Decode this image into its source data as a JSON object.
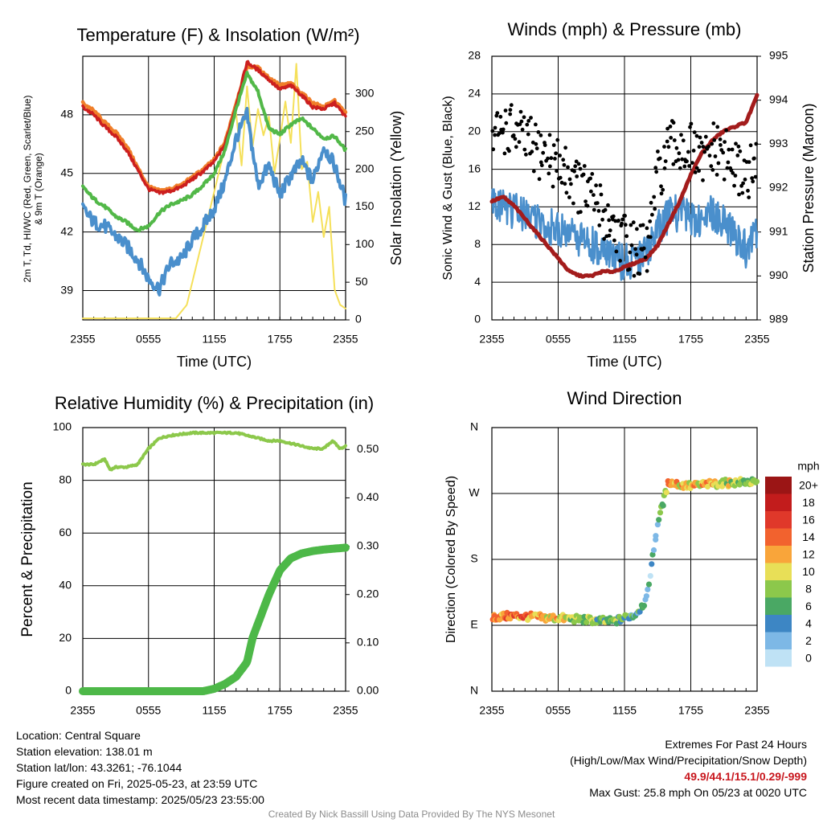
{
  "info": {
    "location": "Location: Central Square",
    "elevation": "Station elevation: 138.01 m",
    "latlon": "Station lat/lon: 43.3261; -76.1044",
    "created": "Figure created on Fri, 2025-05-23, at 23:59 UTC",
    "recent": "Most recent data timestamp: 2025/05/23 23:55:00"
  },
  "extremes": {
    "heading": "Extremes For Past 24 Hours",
    "subheading": "(High/Low/Max Wind/Precipitation/Snow Depth)",
    "values": "49.9/44.1/15.1/0.29/-999",
    "gust": "Max Gust: 25.8 mph On 05/23 at 0020 UTC"
  },
  "footer": "Created By Nick Bassill Using Data Provided By The NYS Mesonet",
  "chart_data": [
    {
      "type": "line",
      "title": "Temperature (F) & Insolation (W/m²)",
      "xlabel": "Time (UTC)",
      "ylabel_left": "2m T, Td, HI/WC (Red, Green, Scarlet/Blue) & 9m T (Orange)",
      "ylabel_right": "Solar Insolation (Yellow)",
      "x_ticks": [
        "2355",
        "0555",
        "1155",
        "1755",
        "2355"
      ],
      "x_hours": [
        0,
        24
      ],
      "ylim_left": [
        37.5,
        51
      ],
      "yticks_left": [
        39,
        42,
        45,
        48
      ],
      "ylim_right": [
        0,
        350
      ],
      "yticks_right": [
        0,
        50,
        100,
        150,
        200,
        250,
        300
      ],
      "colors": {
        "t2m": "#cc1f1f",
        "t9m": "#f07f2a",
        "td": "#52b848",
        "wc": "#4a8fcc",
        "solar": "#f5e05a"
      },
      "series": [
        {
          "key": "t9m",
          "x": [
            0,
            1,
            2,
            3,
            4,
            5,
            6,
            7,
            8,
            9,
            10,
            11,
            12,
            13,
            14,
            15,
            16,
            17,
            18,
            19,
            20,
            21,
            22,
            23,
            24
          ],
          "values": [
            48.6,
            48.2,
            47.6,
            47.1,
            46.4,
            45.3,
            44.3,
            44.1,
            44.2,
            44.4,
            44.8,
            45.2,
            45.7,
            46.6,
            48.6,
            50.5,
            50.4,
            49.9,
            49.5,
            49.6,
            49.1,
            48.6,
            48.4,
            48.7,
            48.1
          ]
        },
        {
          "key": "t2m",
          "x": [
            0,
            1,
            2,
            3,
            4,
            5,
            6,
            7,
            8,
            9,
            10,
            11,
            12,
            13,
            14,
            15,
            16,
            17,
            18,
            19,
            20,
            21,
            22,
            23,
            24
          ],
          "values": [
            48.4,
            48.0,
            47.4,
            46.9,
            46.2,
            45.2,
            44.2,
            44.0,
            44.1,
            44.3,
            44.7,
            45.1,
            45.6,
            46.5,
            48.5,
            50.7,
            50.3,
            49.8,
            49.3,
            49.5,
            49.0,
            48.4,
            48.3,
            48.6,
            47.9
          ]
        },
        {
          "key": "td",
          "x": [
            0,
            1,
            2,
            3,
            4,
            5,
            6,
            7,
            8,
            9,
            10,
            11,
            12,
            13,
            14,
            15,
            16,
            17,
            18,
            19,
            20,
            21,
            22,
            23,
            24
          ],
          "values": [
            44.3,
            43.7,
            43.3,
            42.8,
            42.5,
            42.1,
            42.3,
            43.0,
            43.4,
            43.6,
            43.9,
            44.4,
            45.0,
            46.2,
            48.3,
            50.1,
            49.2,
            47.3,
            47.0,
            47.5,
            47.8,
            47.3,
            46.8,
            46.9,
            46.2
          ]
        },
        {
          "key": "wc",
          "x": [
            0,
            1,
            2,
            3,
            4,
            5,
            6,
            7,
            8,
            9,
            10,
            11,
            12,
            13,
            14,
            15,
            16,
            17,
            18,
            19,
            20,
            21,
            22,
            23,
            24
          ],
          "values": [
            43.2,
            42.5,
            42.3,
            41.8,
            41.3,
            40.6,
            39.6,
            39.1,
            40.4,
            40.6,
            41.6,
            42.3,
            43.2,
            44.6,
            46.8,
            48.0,
            44.4,
            45.4,
            43.9,
            44.9,
            45.6,
            44.6,
            46.4,
            45.4,
            43.6
          ]
        },
        {
          "key": "solar",
          "axis": "right",
          "x": [
            0,
            8.5,
            9.5,
            10.5,
            11.5,
            12.5,
            13.5,
            14,
            14.5,
            15,
            15.5,
            16,
            16.5,
            17,
            17.5,
            18,
            18.5,
            19,
            19.5,
            20,
            20.5,
            21,
            21.5,
            22,
            22.5,
            23,
            23.5,
            24
          ],
          "values": [
            2,
            2,
            20,
            80,
            140,
            200,
            260,
            275,
            205,
            310,
            230,
            280,
            245,
            270,
            195,
            240,
            290,
            235,
            340,
            200,
            210,
            130,
            170,
            110,
            150,
            40,
            20,
            15
          ]
        }
      ]
    },
    {
      "type": "line",
      "title": "Winds (mph) & Pressure (mb)",
      "xlabel": "Time (UTC)",
      "ylabel_left": "Sonic Wind & Gust (Blue, Black)",
      "ylabel_right": "Station Pressure (Maroon)",
      "x_ticks": [
        "2355",
        "0555",
        "1155",
        "1755",
        "2355"
      ],
      "x_hours": [
        0,
        24
      ],
      "ylim_left": [
        0,
        28
      ],
      "yticks_left": [
        0,
        4,
        8,
        12,
        16,
        20,
        24,
        28
      ],
      "ylim_right": [
        989,
        995
      ],
      "yticks_right": [
        989,
        990,
        991,
        992,
        993,
        994,
        995
      ],
      "colors": {
        "wind": "#4a8fcc",
        "gust": "#000000",
        "pressure": "#a31c1c"
      },
      "series": [
        {
          "key": "wind",
          "x": [
            0,
            1,
            2,
            3,
            4,
            5,
            6,
            7,
            8,
            9,
            10,
            11,
            12,
            13,
            14,
            15,
            16,
            17,
            18,
            19,
            20,
            21,
            22,
            23,
            24
          ],
          "values": [
            12.5,
            12.0,
            11.5,
            11.0,
            10.5,
            10.0,
            9.5,
            9.0,
            8.5,
            8.0,
            7.0,
            6.5,
            6.0,
            6.5,
            7.0,
            10.0,
            11.0,
            11.5,
            11.0,
            10.0,
            11.5,
            10.5,
            9.0,
            7.5,
            9.5
          ]
        },
        {
          "key": "gust",
          "x": [
            0,
            1,
            2,
            3,
            4,
            5,
            6,
            7,
            8,
            9,
            10,
            11,
            12,
            13,
            14,
            15,
            16,
            17,
            18,
            19,
            20,
            21,
            22,
            23,
            24
          ],
          "values": [
            19.0,
            20.5,
            20.0,
            19.0,
            18.0,
            17.5,
            16.5,
            15.5,
            14.0,
            13.0,
            11.5,
            10.0,
            8.5,
            7.5,
            7.0,
            15.0,
            18.0,
            18.5,
            18.0,
            16.5,
            18.0,
            17.5,
            16.0,
            15.5,
            16.0
          ]
        },
        {
          "key": "pressure",
          "axis": "right",
          "x": [
            0,
            1,
            2,
            3,
            4,
            5,
            6,
            7,
            8,
            9,
            10,
            11,
            12,
            13,
            14,
            15,
            16,
            17,
            18,
            19,
            20,
            21,
            22,
            23,
            24
          ],
          "values": [
            991.7,
            991.8,
            991.6,
            991.3,
            991.0,
            990.7,
            990.4,
            990.1,
            990.0,
            990.0,
            990.1,
            990.1,
            990.2,
            990.3,
            990.4,
            990.7,
            991.2,
            991.7,
            992.3,
            992.8,
            993.1,
            993.3,
            993.4,
            993.5,
            994.1
          ]
        }
      ]
    },
    {
      "type": "line",
      "title": "Relative Humidity (%) & Precipitation (in)",
      "ylabel_left": "Percent & Precipitation",
      "x_ticks": [
        "2355",
        "0555",
        "1155",
        "1755",
        "2355"
      ],
      "x_hours": [
        0,
        24
      ],
      "ylim_left": [
        0,
        100
      ],
      "yticks_left": [
        0,
        20,
        40,
        60,
        80,
        100
      ],
      "ylim_right": [
        0,
        0.5454
      ],
      "yticks_right": [
        "0.00",
        "0.10",
        "0.20",
        "0.30",
        "0.40",
        "0.50"
      ],
      "colors": {
        "rh": "#8cc84b",
        "precip": "#4db848"
      },
      "series": [
        {
          "key": "rh",
          "x": [
            0,
            1,
            2,
            2.5,
            3,
            4,
            5,
            6,
            7,
            8,
            9,
            10,
            11,
            12,
            13,
            14,
            15,
            16,
            17,
            18,
            19,
            20,
            21,
            22,
            22.8,
            23.5,
            24
          ],
          "values": [
            86,
            86,
            88,
            84,
            85,
            85,
            86,
            92,
            96,
            97,
            97.5,
            98,
            98,
            98,
            98,
            98,
            97,
            96,
            95,
            95,
            94,
            93,
            92,
            92,
            95,
            92,
            93
          ]
        },
        {
          "key": "precip",
          "axis": "right",
          "x": [
            0,
            11,
            12,
            13,
            14,
            15,
            15.5,
            16,
            17,
            18,
            19,
            20,
            21,
            22,
            23,
            24
          ],
          "values": [
            0.0,
            0.0,
            0.005,
            0.015,
            0.03,
            0.06,
            0.11,
            0.14,
            0.2,
            0.25,
            0.275,
            0.285,
            0.29,
            0.293,
            0.295,
            0.297
          ]
        }
      ]
    },
    {
      "type": "scatter",
      "title": "Wind Direction",
      "ylabel_left": "Direction (Colored By Speed)",
      "x_ticks": [
        "2355",
        "0555",
        "1155",
        "1755",
        "2355"
      ],
      "x_hours": [
        0,
        24
      ],
      "y_ticks": [
        "N",
        "E",
        "S",
        "W",
        "N"
      ],
      "ylim": [
        0,
        360
      ],
      "colorbar": {
        "unit": "mph",
        "labels": [
          "20+",
          "18",
          "16",
          "14",
          "12",
          "10",
          "8",
          "6",
          "4",
          "2",
          "0"
        ],
        "colors": [
          "#9b1515",
          "#c21c1c",
          "#e0382a",
          "#f2622e",
          "#f9a53a",
          "#e8df57",
          "#8cc84b",
          "#4aa864",
          "#3d86c4",
          "#7db8e6",
          "#bfe2f5"
        ]
      },
      "series": [
        {
          "x": [
            0,
            1,
            2,
            3,
            4,
            5,
            6,
            7,
            8,
            9,
            10,
            11,
            12,
            13,
            14,
            15,
            16,
            17,
            18,
            19,
            20,
            21,
            22,
            23,
            24
          ],
          "values": [
            101,
            102,
            103,
            102,
            101,
            100,
            100,
            99,
            98,
            97,
            96,
            95,
            100,
            105,
            125,
            230,
            286,
            282,
            280,
            282,
            283,
            284,
            285,
            286,
            284
          ],
          "speeds": [
            12,
            13,
            14,
            13,
            12,
            10,
            11,
            10,
            9,
            8,
            7,
            7,
            6,
            5,
            4,
            3,
            12,
            11,
            10,
            11,
            12,
            10,
            9,
            8,
            9
          ]
        }
      ]
    }
  ]
}
